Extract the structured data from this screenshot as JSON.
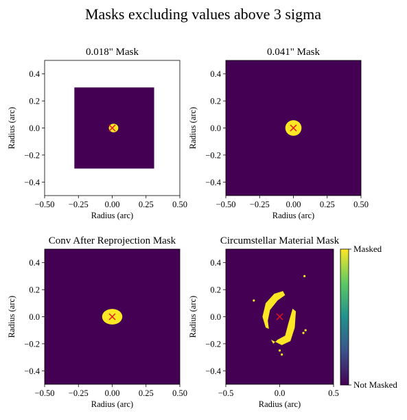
{
  "suptitle": "Masks excluding values above 3 sigma",
  "colors": {
    "masked": "#fde725",
    "not_masked": "#440154",
    "marker": "#e4141b",
    "background": "#ffffff"
  },
  "chart_data": [
    {
      "type": "heatmap",
      "title": "0.018\" Mask",
      "xlabel": "Radius (arc)",
      "ylabel": "Radius (arc)",
      "xlim": [
        -0.5,
        0.5
      ],
      "ylim": [
        -0.5,
        0.5
      ],
      "xticks": [
        "−0.50",
        "−0.25",
        "0.00",
        "0.25",
        "0.50"
      ],
      "yticks": [
        "−0.4",
        "−0.2",
        "0.0",
        "0.2",
        "0.4"
      ],
      "data_extent": {
        "x": [
          -0.28,
          0.31
        ],
        "y": [
          -0.3,
          0.3
        ]
      },
      "masked_region": {
        "shape": "ellipse",
        "center": [
          0.01,
          0.0
        ],
        "rx": 0.035,
        "ry": 0.032
      },
      "marker": {
        "symbol": "x",
        "x": 0.0,
        "y": 0.0
      }
    },
    {
      "type": "heatmap",
      "title": "0.041\" Mask",
      "xlabel": "Radius (arc)",
      "ylabel": "Radius (arc)",
      "xlim": [
        -0.5,
        0.5
      ],
      "ylim": [
        -0.5,
        0.5
      ],
      "xticks": [
        "−0.50",
        "−0.25",
        "0.00",
        "0.25",
        "0.50"
      ],
      "yticks": [
        "−0.4",
        "−0.2",
        "0.0",
        "0.2",
        "0.4"
      ],
      "data_extent": {
        "x": [
          -0.5,
          0.5
        ],
        "y": [
          -0.5,
          0.5
        ]
      },
      "masked_region": {
        "shape": "ellipse",
        "center": [
          0.0,
          0.0
        ],
        "rx": 0.06,
        "ry": 0.058
      },
      "marker": {
        "symbol": "x",
        "x": 0.0,
        "y": 0.0
      }
    },
    {
      "type": "heatmap",
      "title": "Conv After Reprojection Mask",
      "xlabel": "Radius (arc)",
      "ylabel": "Radius (arc)",
      "xlim": [
        -0.5,
        0.5
      ],
      "ylim": [
        -0.5,
        0.5
      ],
      "xticks": [
        "−0.50",
        "−0.25",
        "0.00",
        "0.25",
        "0.50"
      ],
      "yticks": [
        "−0.4",
        "−0.2",
        "0.0",
        "0.2",
        "0.4"
      ],
      "data_extent": {
        "x": [
          -0.5,
          0.5
        ],
        "y": [
          -0.5,
          0.5
        ]
      },
      "masked_region": {
        "shape": "ellipse",
        "center": [
          0.0,
          0.0
        ],
        "rx": 0.075,
        "ry": 0.058
      },
      "marker": {
        "symbol": "x",
        "x": 0.0,
        "y": 0.0
      }
    },
    {
      "type": "heatmap",
      "title": "Circumstellar Material Mask",
      "xlabel": "Radius (arc)",
      "ylabel": "Radius (arc)",
      "xlim": [
        -0.5,
        0.5
      ],
      "ylim": [
        -0.5,
        0.5
      ],
      "xticks": [
        "−0.5",
        "0.0",
        "0.5"
      ],
      "yticks": [
        "−0.4",
        "−0.2",
        "0.0",
        "0.2",
        "0.4"
      ],
      "data_extent": {
        "x": [
          -0.5,
          0.5
        ],
        "y": [
          -0.5,
          0.5
        ]
      },
      "masked_region": {
        "shape": "spiral-arms",
        "arms": [
          [
            [
              -0.13,
              -0.08
            ],
            [
              -0.16,
              0.0
            ],
            [
              -0.13,
              0.1
            ],
            [
              -0.05,
              0.17
            ],
            [
              0.03,
              0.19
            ],
            [
              0.05,
              0.16
            ],
            [
              -0.02,
              0.12
            ],
            [
              -0.09,
              0.05
            ],
            [
              -0.11,
              -0.03
            ],
            [
              -0.1,
              -0.09
            ]
          ],
          [
            [
              -0.08,
              -0.17
            ],
            [
              0.02,
              -0.21
            ],
            [
              0.1,
              -0.18
            ],
            [
              0.14,
              -0.08
            ],
            [
              0.15,
              0.04
            ],
            [
              0.12,
              0.06
            ],
            [
              0.08,
              -0.05
            ],
            [
              0.05,
              -0.14
            ],
            [
              -0.02,
              -0.17
            ],
            [
              -0.06,
              -0.2
            ]
          ]
        ],
        "specks": [
          [
            0.22,
            -0.12
          ],
          [
            0.24,
            -0.1
          ],
          [
            0.0,
            -0.25
          ],
          [
            0.02,
            -0.28
          ],
          [
            -0.24,
            0.12
          ],
          [
            0.23,
            0.3
          ]
        ]
      },
      "marker": {
        "symbol": "x",
        "x": 0.0,
        "y": 0.0
      }
    }
  ],
  "colorbar": {
    "top_label": "Masked",
    "bottom_label": "Not Masked",
    "colormap": "viridis"
  }
}
